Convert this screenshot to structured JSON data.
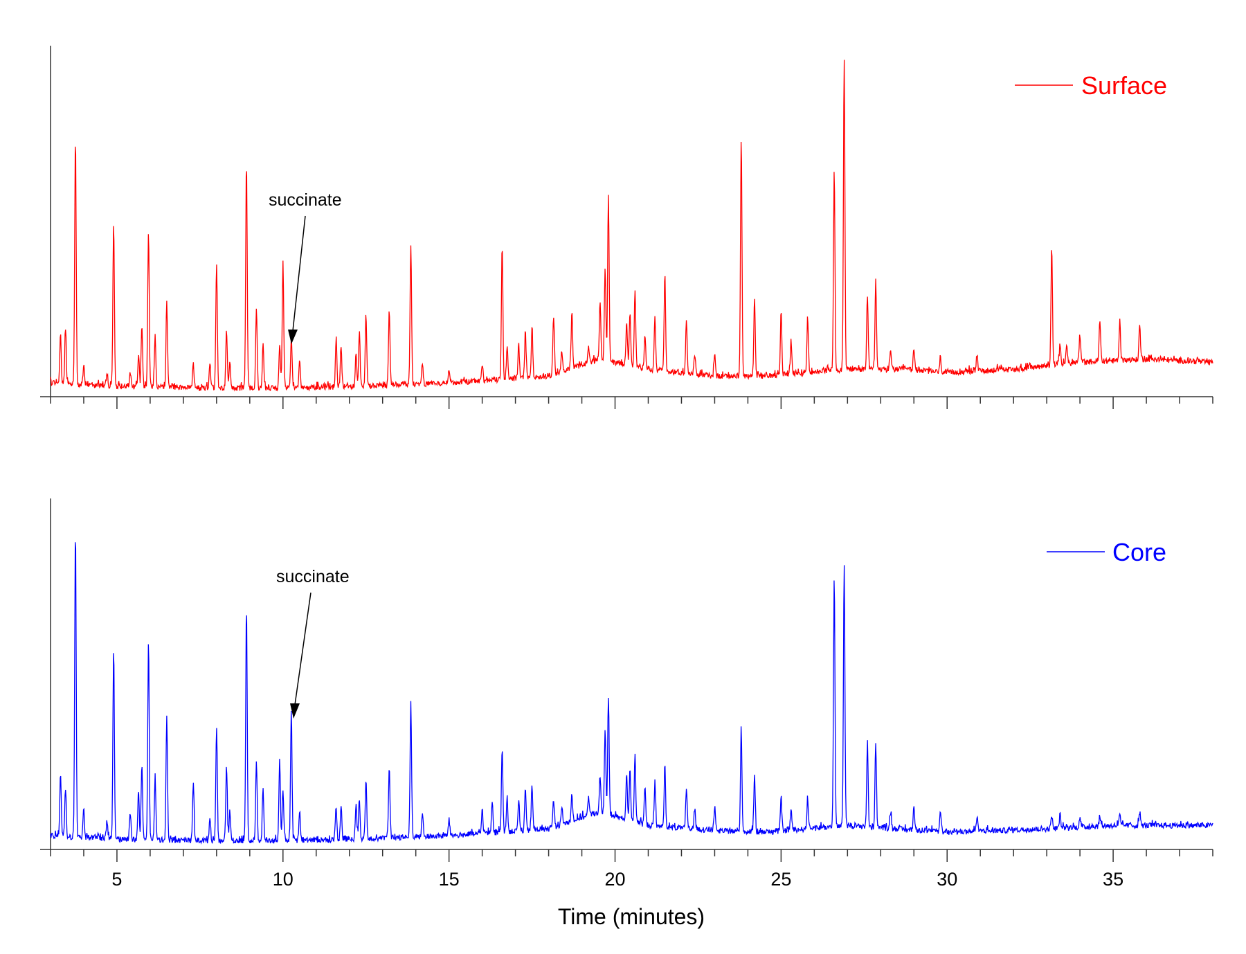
{
  "chart_data": [
    {
      "panel": "top",
      "type": "line",
      "xlim": [
        3,
        38
      ],
      "ylim": [
        0,
        100
      ],
      "xticks": [
        5,
        10,
        15,
        20,
        25,
        30,
        35
      ],
      "show_tick_labels": false,
      "legend": {
        "label": "Surface",
        "color": "#ff0000",
        "placement": "top-right"
      },
      "series": [
        {
          "name": "Surface",
          "color": "#ff0000",
          "baseline": [
            [
              3,
              4
            ],
            [
              5,
              3
            ],
            [
              8,
              2.5
            ],
            [
              10,
              2.5
            ],
            [
              12,
              3
            ],
            [
              15,
              4
            ],
            [
              18,
              6
            ],
            [
              19.5,
              11
            ],
            [
              21,
              8
            ],
            [
              23,
              6
            ],
            [
              24.5,
              6
            ],
            [
              27,
              8
            ],
            [
              28.8,
              8
            ],
            [
              30,
              7
            ],
            [
              32,
              8
            ],
            [
              34,
              10
            ],
            [
              36,
              11
            ],
            [
              38,
              10
            ]
          ],
          "peaks": [
            [
              3.3,
              14
            ],
            [
              3.45,
              16
            ],
            [
              3.75,
              72
            ],
            [
              4.0,
              6
            ],
            [
              4.7,
              4
            ],
            [
              4.9,
              47
            ],
            [
              5.4,
              4
            ],
            [
              5.65,
              9
            ],
            [
              5.75,
              18
            ],
            [
              5.95,
              46
            ],
            [
              6.15,
              15
            ],
            [
              6.5,
              25
            ],
            [
              7.3,
              7
            ],
            [
              7.8,
              7
            ],
            [
              8.0,
              37
            ],
            [
              8.3,
              17
            ],
            [
              8.4,
              7
            ],
            [
              8.9,
              66
            ],
            [
              9.2,
              24
            ],
            [
              9.4,
              13
            ],
            [
              9.9,
              13
            ],
            [
              10.0,
              37
            ],
            [
              10.25,
              15
            ],
            [
              10.5,
              8
            ],
            [
              11.6,
              14
            ],
            [
              11.75,
              12
            ],
            [
              12.2,
              10
            ],
            [
              12.3,
              16
            ],
            [
              12.5,
              20
            ],
            [
              13.2,
              22
            ],
            [
              13.85,
              41
            ],
            [
              14.2,
              6
            ],
            [
              15.0,
              4
            ],
            [
              16.0,
              5
            ],
            [
              16.6,
              39
            ],
            [
              16.75,
              10
            ],
            [
              17.1,
              9
            ],
            [
              17.3,
              13
            ],
            [
              17.5,
              15
            ],
            [
              18.15,
              17
            ],
            [
              18.4,
              6
            ],
            [
              18.7,
              16
            ],
            [
              19.2,
              5
            ],
            [
              19.55,
              17
            ],
            [
              19.7,
              27
            ],
            [
              19.8,
              48
            ],
            [
              20.35,
              12
            ],
            [
              20.45,
              16
            ],
            [
              20.6,
              22
            ],
            [
              20.9,
              10
            ],
            [
              21.2,
              16
            ],
            [
              21.5,
              28
            ],
            [
              22.15,
              16
            ],
            [
              22.4,
              6
            ],
            [
              23.0,
              7
            ],
            [
              23.8,
              70
            ],
            [
              24.2,
              23
            ],
            [
              25.0,
              19
            ],
            [
              25.3,
              10
            ],
            [
              25.8,
              16
            ],
            [
              26.6,
              59
            ],
            [
              26.9,
              91
            ],
            [
              27.6,
              22
            ],
            [
              27.85,
              26
            ],
            [
              28.3,
              5
            ],
            [
              29.0,
              6
            ],
            [
              29.8,
              4
            ],
            [
              30.9,
              5
            ],
            [
              33.15,
              35
            ],
            [
              33.4,
              6
            ],
            [
              33.6,
              6
            ],
            [
              34.0,
              8
            ],
            [
              34.6,
              12
            ],
            [
              35.2,
              11
            ],
            [
              35.8,
              10
            ]
          ]
        }
      ],
      "annotations": [
        {
          "text": "succinate",
          "x": 10.25,
          "y": 17
        }
      ]
    },
    {
      "panel": "bottom",
      "type": "line",
      "xlim": [
        3,
        38
      ],
      "ylim": [
        0,
        100
      ],
      "xticks": [
        5,
        10,
        15,
        20,
        25,
        30,
        35
      ],
      "xticklabels": [
        "5",
        "10",
        "15",
        "20",
        "25",
        "30",
        "35"
      ],
      "xlabel": "Time (minutes)",
      "legend": {
        "label": "Core",
        "color": "#0000ff",
        "placement": "top-right"
      },
      "series": [
        {
          "name": "Core",
          "color": "#0000ff",
          "baseline": [
            [
              3,
              4
            ],
            [
              5,
              3
            ],
            [
              8,
              2.5
            ],
            [
              10,
              2.5
            ],
            [
              12,
              3
            ],
            [
              15,
              4
            ],
            [
              18,
              6
            ],
            [
              19.5,
              11
            ],
            [
              21,
              7
            ],
            [
              23,
              5.5
            ],
            [
              24.5,
              5
            ],
            [
              27,
              7
            ],
            [
              28.5,
              6
            ],
            [
              30,
              5
            ],
            [
              33,
              6
            ],
            [
              35,
              7
            ],
            [
              38,
              7
            ]
          ],
          "peaks": [
            [
              3.3,
              18
            ],
            [
              3.45,
              14
            ],
            [
              3.75,
              90
            ],
            [
              4.0,
              8
            ],
            [
              4.7,
              5
            ],
            [
              4.9,
              56
            ],
            [
              5.4,
              8
            ],
            [
              5.65,
              14
            ],
            [
              5.75,
              22
            ],
            [
              5.95,
              58
            ],
            [
              6.15,
              18
            ],
            [
              6.5,
              36
            ],
            [
              7.3,
              17
            ],
            [
              7.8,
              7
            ],
            [
              8.0,
              34
            ],
            [
              8.3,
              22
            ],
            [
              8.4,
              9
            ],
            [
              8.9,
              69
            ],
            [
              9.2,
              23
            ],
            [
              9.4,
              15
            ],
            [
              9.9,
              24
            ],
            [
              10.0,
              14
            ],
            [
              10.25,
              38
            ],
            [
              10.5,
              9
            ],
            [
              11.6,
              9
            ],
            [
              11.75,
              10
            ],
            [
              12.2,
              10
            ],
            [
              12.3,
              12
            ],
            [
              12.5,
              17
            ],
            [
              13.2,
              20
            ],
            [
              13.85,
              39
            ],
            [
              14.2,
              7
            ],
            [
              15.0,
              5
            ],
            [
              16.0,
              7
            ],
            [
              16.3,
              9
            ],
            [
              16.6,
              25
            ],
            [
              16.75,
              10
            ],
            [
              17.1,
              9
            ],
            [
              17.3,
              12
            ],
            [
              17.5,
              13
            ],
            [
              18.15,
              8
            ],
            [
              18.4,
              5
            ],
            [
              18.7,
              8
            ],
            [
              19.2,
              5
            ],
            [
              19.55,
              10
            ],
            [
              19.7,
              25
            ],
            [
              19.8,
              34
            ],
            [
              20.35,
              13
            ],
            [
              20.45,
              15
            ],
            [
              20.6,
              20
            ],
            [
              20.9,
              11
            ],
            [
              21.2,
              12
            ],
            [
              21.5,
              18
            ],
            [
              22.15,
              11
            ],
            [
              22.4,
              6
            ],
            [
              23.0,
              7
            ],
            [
              23.8,
              30
            ],
            [
              24.2,
              17
            ],
            [
              25.0,
              10
            ],
            [
              25.3,
              6
            ],
            [
              25.8,
              9
            ],
            [
              26.6,
              73
            ],
            [
              26.9,
              77
            ],
            [
              27.6,
              24
            ],
            [
              27.85,
              25
            ],
            [
              28.3,
              5
            ],
            [
              29.0,
              7
            ],
            [
              29.8,
              6
            ],
            [
              30.9,
              4
            ],
            [
              33.15,
              4
            ],
            [
              33.4,
              4
            ],
            [
              34.0,
              3
            ],
            [
              34.6,
              3
            ],
            [
              35.2,
              3
            ],
            [
              35.8,
              4
            ]
          ]
        }
      ],
      "annotations": [
        {
          "text": "succinate",
          "x": 10.25,
          "y": 38
        }
      ]
    }
  ]
}
